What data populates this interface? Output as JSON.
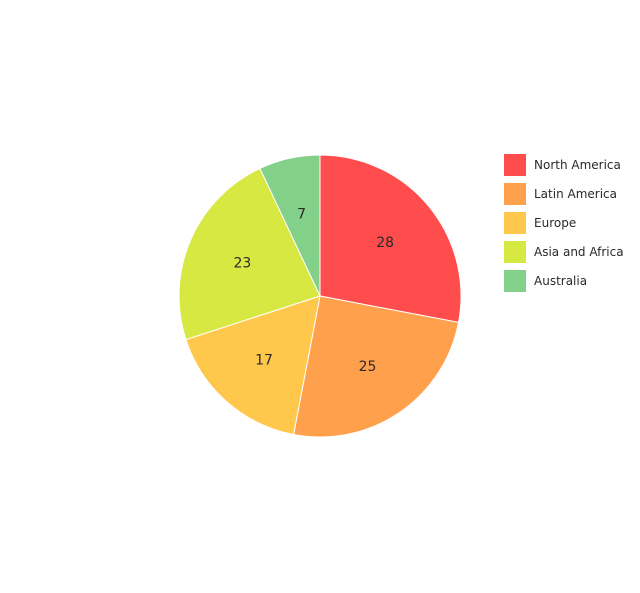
{
  "chart_data": {
    "type": "pie",
    "categories": [
      "North America",
      "Latin America",
      "Europe",
      "Asia and Africa",
      "Australia"
    ],
    "values": [
      28,
      25,
      17,
      23,
      7
    ],
    "colors": [
      "#ff4c4c",
      "#ffa04c",
      "#ffc84c",
      "#d8e843",
      "#82d08a"
    ],
    "direction": "clockwise",
    "start_angle": "top",
    "legend_position": "right",
    "title": ""
  }
}
